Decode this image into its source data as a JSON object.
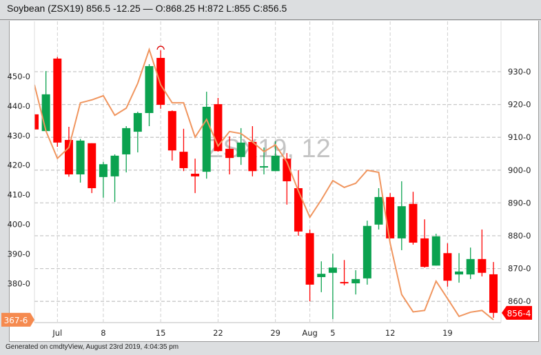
{
  "header": {
    "title": "Soybean (ZSX19) 856.5 -12.25 — O:868.25 H:872 L:855 C:856.5"
  },
  "footer": {
    "text": "Generated on cmdtyView, August 23rd 2019, 4:04:35 pm"
  },
  "chart_data": {
    "type": "candlestick",
    "watermark": "ZSX19, 12",
    "colors": {
      "up": "#0ba24f",
      "down": "#ff0000",
      "line": "#f0955e",
      "left_label_bg": "#f58a4f",
      "right_label_bg": "#ff0000"
    },
    "x_ticks": [
      {
        "label": "Jul",
        "date": "Jul 1"
      },
      {
        "label": "8",
        "date": "Jul 8"
      },
      {
        "label": "15",
        "date": "Jul 15"
      },
      {
        "label": "22",
        "date": "Jul 22"
      },
      {
        "label": "29",
        "date": "Jul 29"
      },
      {
        "label": "Aug",
        "date": "Aug 1"
      },
      {
        "label": "5",
        "date": "Aug 5"
      },
      {
        "label": "12",
        "date": "Aug 12"
      },
      {
        "label": "19",
        "date": "Aug 19"
      }
    ],
    "right_axis": {
      "ticks": [
        "930-0",
        "920-0",
        "910-0",
        "900-0",
        "890-0",
        "880-0",
        "870-0",
        "860-0"
      ],
      "tick_values": [
        930,
        920,
        910,
        900,
        890,
        880,
        870,
        860
      ],
      "last_label": "856-4",
      "last_value": 856.5
    },
    "left_axis": {
      "ticks": [
        "450-0",
        "440-0",
        "430-0",
        "420-0",
        "410-0",
        "400-0",
        "390-0",
        "380-0"
      ],
      "tick_values": [
        450,
        440,
        430,
        420,
        410,
        400,
        390,
        380
      ],
      "last_label": "367-6",
      "last_value": 367.75
    },
    "grid": true,
    "candles": [
      {
        "date": "Jun 27",
        "o": 917.0,
        "h": 917.0,
        "l": 912.4,
        "c": 912.4
      },
      {
        "date": "Jun 28",
        "o": 911.9,
        "h": 930.2,
        "l": 911.9,
        "c": 923.1
      },
      {
        "date": "Jul 1",
        "o": 934.0,
        "h": 934.5,
        "l": 907.1,
        "c": 908.4
      },
      {
        "date": "Jul 2",
        "o": 909.2,
        "h": 913.2,
        "l": 898.0,
        "c": 898.7
      },
      {
        "date": "Jul 3",
        "o": 898.7,
        "h": 909.5,
        "l": 896.2,
        "c": 909.0
      },
      {
        "date": "Jul 5",
        "o": 908.2,
        "h": 908.2,
        "l": 893.0,
        "c": 894.5
      },
      {
        "date": "Jul 8",
        "o": 897.9,
        "h": 902.5,
        "l": 891.6,
        "c": 901.8
      },
      {
        "date": "Jul 9",
        "o": 898.1,
        "h": 904.8,
        "l": 890.3,
        "c": 904.4
      },
      {
        "date": "Jul 10",
        "o": 904.8,
        "h": 913.4,
        "l": 899.3,
        "c": 912.8
      },
      {
        "date": "Jul 11",
        "o": 911.7,
        "h": 917.8,
        "l": 905.4,
        "c": 917.4
      },
      {
        "date": "Jul 12",
        "o": 917.4,
        "h": 932.3,
        "l": 913.4,
        "c": 931.7
      },
      {
        "date": "Jul 15",
        "o": 934.2,
        "h": 936.5,
        "l": 918.7,
        "c": 919.9
      },
      {
        "date": "Jul 16",
        "o": 918.0,
        "h": 918.2,
        "l": 902.9,
        "c": 906.0
      },
      {
        "date": "Jul 17",
        "o": 905.6,
        "h": 912.6,
        "l": 899.7,
        "c": 900.6
      },
      {
        "date": "Jul 18",
        "o": 898.9,
        "h": 903.5,
        "l": 893.0,
        "c": 898.1
      },
      {
        "date": "Jul 19",
        "o": 899.5,
        "h": 923.9,
        "l": 897.4,
        "c": 919.3
      },
      {
        "date": "Jul 22",
        "o": 920.1,
        "h": 922.0,
        "l": 905.6,
        "c": 905.8
      },
      {
        "date": "Jul 23",
        "o": 906.5,
        "h": 910.3,
        "l": 898.7,
        "c": 903.7
      },
      {
        "date": "Jul 24",
        "o": 904.0,
        "h": 912.8,
        "l": 901.6,
        "c": 908.4
      },
      {
        "date": "Jul 25",
        "o": 908.6,
        "h": 913.4,
        "l": 898.1,
        "c": 899.7
      },
      {
        "date": "Jul 26",
        "o": 901.0,
        "h": 906.9,
        "l": 898.7,
        "c": 901.2
      },
      {
        "date": "Jul 29",
        "o": 899.7,
        "h": 908.8,
        "l": 899.7,
        "c": 904.4
      },
      {
        "date": "Jul 30",
        "o": 903.5,
        "h": 905.2,
        "l": 889.5,
        "c": 896.6
      },
      {
        "date": "Jul 31",
        "o": 894.5,
        "h": 900.0,
        "l": 880.0,
        "c": 881.3
      },
      {
        "date": "Aug 1",
        "o": 880.8,
        "h": 881.9,
        "l": 860.0,
        "c": 865.1
      },
      {
        "date": "Aug 2",
        "o": 867.4,
        "h": 872.2,
        "l": 862.8,
        "c": 868.4
      },
      {
        "date": "Aug 5",
        "o": 868.7,
        "h": 874.5,
        "l": 854.6,
        "c": 870.3
      },
      {
        "date": "Aug 6",
        "o": 865.9,
        "h": 872.6,
        "l": 864.9,
        "c": 865.5
      },
      {
        "date": "Aug 7",
        "o": 865.5,
        "h": 869.5,
        "l": 862.1,
        "c": 866.8
      },
      {
        "date": "Aug 8",
        "o": 867.0,
        "h": 884.6,
        "l": 865.1,
        "c": 883.0
      },
      {
        "date": "Aug 9",
        "o": 883.4,
        "h": 894.5,
        "l": 881.9,
        "c": 891.8
      },
      {
        "date": "Aug 12",
        "o": 891.8,
        "h": 893.0,
        "l": 879.2,
        "c": 879.2
      },
      {
        "date": "Aug 13",
        "o": 879.2,
        "h": 896.6,
        "l": 875.6,
        "c": 889.0
      },
      {
        "date": "Aug 14",
        "o": 889.7,
        "h": 893.4,
        "l": 877.3,
        "c": 877.9
      },
      {
        "date": "Aug 15",
        "o": 879.2,
        "h": 885.0,
        "l": 870.3,
        "c": 870.5
      },
      {
        "date": "Aug 16",
        "o": 870.9,
        "h": 880.6,
        "l": 870.9,
        "c": 879.8
      },
      {
        "date": "Aug 19",
        "o": 874.7,
        "h": 877.7,
        "l": 864.5,
        "c": 866.3
      },
      {
        "date": "Aug 20",
        "o": 868.2,
        "h": 874.7,
        "l": 865.7,
        "c": 869.1
      },
      {
        "date": "Aug 21",
        "o": 868.2,
        "h": 876.4,
        "l": 866.8,
        "c": 872.9
      },
      {
        "date": "Aug 22",
        "o": 872.9,
        "h": 881.9,
        "l": 867.6,
        "c": 868.7
      },
      {
        "date": "Aug 23",
        "o": 868.25,
        "h": 872.0,
        "l": 855.0,
        "c": 856.5
      }
    ],
    "line_series": {
      "axis": "left",
      "values": [
        447.2,
        431.6,
        422.3,
        426.0,
        441.1,
        442.1,
        443.5,
        436.9,
        439.3,
        447.7,
        459.1,
        447.2,
        441.1,
        441.1,
        429.5,
        435.5,
        426.5,
        431.4,
        430.7,
        427.9,
        424.6,
        426.9,
        421.1,
        411.3,
        402.4,
        408.3,
        414.8,
        412.5,
        413.9,
        418.3,
        417.6,
        393.6,
        376.3,
        370.4,
        370.9,
        380.8,
        374.9,
        368.9,
        370.3,
        370.9,
        367.75
      ]
    }
  }
}
